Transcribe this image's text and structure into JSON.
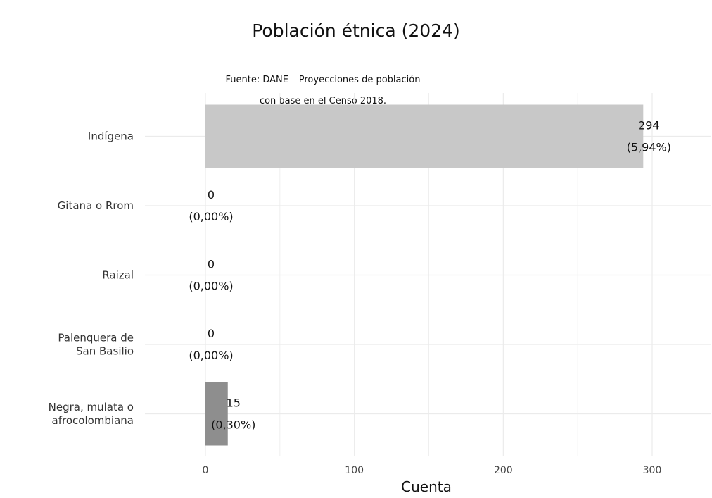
{
  "chart_data": {
    "type": "bar",
    "orientation": "horizontal",
    "title": "Población étnica (2024)",
    "subtitle": [
      "Fuente: DANE – Proyecciones de población",
      "con base en el Censo 2018."
    ],
    "xlabel": "Cuenta",
    "ylabel": "",
    "xlim": [
      0,
      338
    ],
    "xticks": [
      0,
      100,
      200,
      300
    ],
    "grid": true,
    "legend": "none",
    "categories": [
      "Indígena",
      "Gitana o Rrom",
      "Raizal",
      "Palenquera de San Basilio",
      "Negra, mulata o afrocolombiana"
    ],
    "category_lines": [
      [
        "Indígena"
      ],
      [
        "Gitana o Rrom"
      ],
      [
        "Raizal"
      ],
      [
        "Palenquera de",
        "San Basilio"
      ],
      [
        "Negra, mulata o",
        "afrocolombiana"
      ]
    ],
    "values": [
      294,
      0,
      0,
      0,
      15
    ],
    "percent_labels": [
      "(5,94%)",
      "(0,00%)",
      "(0,00%)",
      "(0,00%)",
      "(0,30%)"
    ],
    "bar_colors": [
      "#c8c8c8",
      "#c8c8c8",
      "#c8c8c8",
      "#c8c8c8",
      "#8e8e8e"
    ],
    "grid_color": "#ebebeb"
  }
}
